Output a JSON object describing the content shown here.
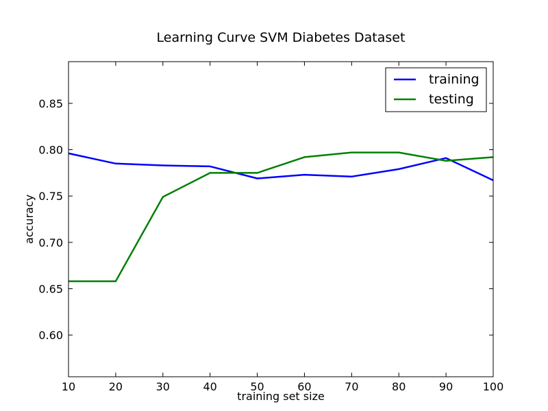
{
  "chart_data": {
    "type": "line",
    "title": "Learning Curve SVM Diabetes Dataset",
    "xlabel": "training set size",
    "ylabel": "accuracy",
    "xlim": [
      10,
      100
    ],
    "ylim": [
      0.555,
      0.895
    ],
    "xticks": [
      10,
      20,
      30,
      40,
      50,
      60,
      70,
      80,
      90,
      100
    ],
    "yticks": [
      0.6,
      0.65,
      0.7,
      0.75,
      0.8,
      0.85
    ],
    "xtick_labels": [
      "10",
      "20",
      "30",
      "40",
      "50",
      "60",
      "70",
      "80",
      "90",
      "100"
    ],
    "ytick_labels": [
      "0.60",
      "0.65",
      "0.70",
      "0.75",
      "0.80",
      "0.85"
    ],
    "grid": false,
    "legend_position": "top-right",
    "x": [
      10,
      20,
      30,
      40,
      50,
      60,
      70,
      80,
      90,
      100
    ],
    "series": [
      {
        "name": "training",
        "color": "#0000ff",
        "values": [
          0.796,
          0.785,
          0.783,
          0.782,
          0.769,
          0.773,
          0.771,
          0.779,
          0.791,
          0.767
        ]
      },
      {
        "name": "testing",
        "color": "#008000",
        "values": [
          0.658,
          0.658,
          0.749,
          0.775,
          0.775,
          0.792,
          0.797,
          0.797,
          0.788,
          0.792
        ]
      }
    ]
  }
}
